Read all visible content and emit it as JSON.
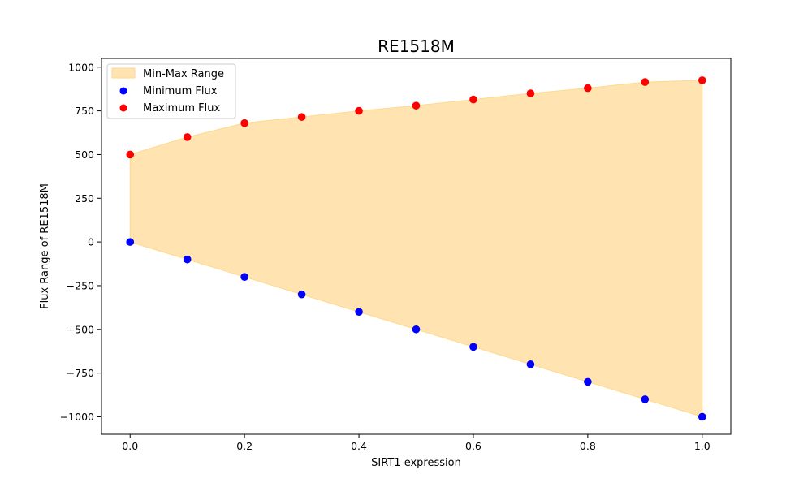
{
  "chart_data": {
    "type": "scatter",
    "title": "RE1518M",
    "xlabel": "SIRT1 expression",
    "ylabel": "Flux Range of RE1518M",
    "xlim": [
      -0.05,
      1.05
    ],
    "ylim": [
      -1100,
      1050
    ],
    "xticks": [
      0.0,
      0.2,
      0.4,
      0.6,
      0.8,
      1.0
    ],
    "xtick_labels": [
      "0.0",
      "0.2",
      "0.4",
      "0.6",
      "0.8",
      "1.0"
    ],
    "yticks": [
      -1000,
      -750,
      -500,
      -250,
      0,
      250,
      500,
      750,
      1000
    ],
    "ytick_labels": [
      "−1000",
      "−750",
      "−500",
      "−250",
      "0",
      "250",
      "500",
      "750",
      "1000"
    ],
    "grid": false,
    "legend_position": "upper-left",
    "x": [
      0.0,
      0.1,
      0.2,
      0.3,
      0.4,
      0.5,
      0.6,
      0.7,
      0.8,
      0.9,
      1.0
    ],
    "fill": {
      "name": "Min-Max Range",
      "color": "#FFE4B2",
      "edge_color": "#FFD98C"
    },
    "series": [
      {
        "name": "Minimum Flux",
        "color": "#0000FF",
        "values": [
          0,
          -100,
          -200,
          -300,
          -400,
          -500,
          -600,
          -700,
          -800,
          -900,
          -1000
        ]
      },
      {
        "name": "Maximum Flux",
        "color": "#FF0000",
        "values": [
          500,
          600,
          680,
          715,
          750,
          780,
          815,
          850,
          880,
          915,
          925
        ]
      }
    ]
  }
}
